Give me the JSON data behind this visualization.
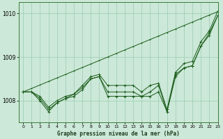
{
  "xlabel": "Graphe pression niveau de la mer (hPa)",
  "ylim": [
    1007.5,
    1010.25
  ],
  "xlim": [
    -0.5,
    23
  ],
  "yticks": [
    1008,
    1009,
    1010
  ],
  "xticks": [
    0,
    1,
    2,
    3,
    4,
    5,
    6,
    7,
    8,
    9,
    10,
    11,
    12,
    13,
    14,
    15,
    16,
    17,
    18,
    19,
    20,
    21,
    22,
    23
  ],
  "bg_color": "#cce8d8",
  "grid_color": "#99ccb0",
  "line_color": "#1a5c1a",
  "line1": [
    1008.2,
    1008.2,
    1008.1,
    1007.85,
    1008.0,
    1008.1,
    1008.15,
    1008.35,
    1008.55,
    1008.6,
    1008.35,
    1008.35,
    1008.35,
    1008.35,
    1008.2,
    1008.35,
    1008.4,
    1007.8,
    1008.65,
    1008.85,
    1008.9,
    1009.35,
    1009.6,
    1010.05
  ],
  "line2": [
    1008.2,
    1008.2,
    1008.05,
    1007.8,
    1007.95,
    1008.05,
    1008.15,
    1008.3,
    1008.5,
    1008.55,
    1008.2,
    1008.2,
    1008.2,
    1008.2,
    1008.1,
    1008.2,
    1008.35,
    1007.75,
    1008.55,
    1008.75,
    1008.8,
    1009.25,
    1009.55,
    1009.95
  ],
  "line3": [
    1008.2,
    1008.2,
    1008.0,
    1007.75,
    1007.95,
    1008.05,
    1008.1,
    1008.25,
    1008.5,
    1008.55,
    1008.1,
    1008.1,
    1008.1,
    1008.1,
    1008.1,
    1008.1,
    1008.2,
    1007.75,
    1008.6,
    1008.75,
    1008.8,
    1009.25,
    1009.5,
    1009.95
  ],
  "line4_straight": [
    1008.2,
    1008.28,
    1008.36,
    1008.44,
    1008.52,
    1008.6,
    1008.68,
    1008.76,
    1008.84,
    1008.92,
    1009.0,
    1009.08,
    1009.16,
    1009.24,
    1009.32,
    1009.4,
    1009.48,
    1009.56,
    1009.64,
    1009.72,
    1009.8,
    1009.88,
    1009.96,
    1010.04
  ]
}
